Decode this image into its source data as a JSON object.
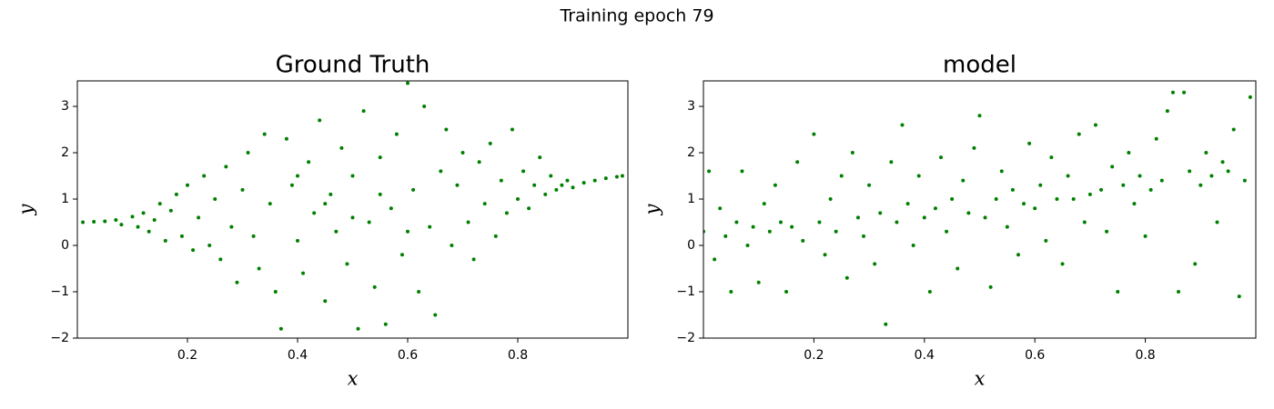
{
  "title": "Training epoch 79",
  "chart_data": [
    {
      "type": "scatter",
      "title": "Ground Truth",
      "xlabel": "x",
      "ylabel": "y",
      "color": "#008000",
      "xlim": [
        0,
        1
      ],
      "ylim": [
        -2,
        3.55
      ],
      "xticks": [
        0.2,
        0.4,
        0.6,
        0.8
      ],
      "yticks": [
        {
          "value": -2,
          "label": "−2"
        },
        {
          "value": -1,
          "label": "−1"
        },
        0,
        1,
        2,
        3
      ],
      "x": [
        0.01,
        0.03,
        0.05,
        0.07,
        0.08,
        0.1,
        0.11,
        0.12,
        0.13,
        0.14,
        0.15,
        0.16,
        0.17,
        0.18,
        0.19,
        0.2,
        0.21,
        0.22,
        0.23,
        0.24,
        0.25,
        0.26,
        0.27,
        0.28,
        0.29,
        0.3,
        0.31,
        0.32,
        0.33,
        0.34,
        0.35,
        0.36,
        0.37,
        0.38,
        0.39,
        0.4,
        0.41,
        0.42,
        0.43,
        0.44,
        0.45,
        0.46,
        0.47,
        0.48,
        0.49,
        0.5,
        0.51,
        0.52,
        0.53,
        0.54,
        0.55,
        0.56,
        0.57,
        0.58,
        0.59,
        0.6,
        0.61,
        0.62,
        0.63,
        0.64,
        0.65,
        0.66,
        0.67,
        0.68,
        0.69,
        0.7,
        0.71,
        0.72,
        0.73,
        0.74,
        0.75,
        0.76,
        0.77,
        0.78,
        0.79,
        0.8,
        0.81,
        0.82,
        0.83,
        0.84,
        0.85,
        0.86,
        0.87,
        0.88,
        0.89,
        0.9,
        0.92,
        0.94,
        0.96,
        0.98,
        0.99,
        0.45,
        0.5,
        0.55,
        0.4,
        0.6
      ],
      "y": [
        0.5,
        0.51,
        0.52,
        0.55,
        0.45,
        0.62,
        0.4,
        0.7,
        0.3,
        0.55,
        0.9,
        0.1,
        0.75,
        1.1,
        0.2,
        1.3,
        -0.1,
        0.6,
        1.5,
        0.0,
        1.0,
        -0.3,
        1.7,
        0.4,
        -0.8,
        1.2,
        2.0,
        0.2,
        -0.5,
        2.4,
        0.9,
        -1.0,
        -1.8,
        2.3,
        1.3,
        0.1,
        -0.6,
        1.8,
        0.7,
        2.7,
        -1.2,
        1.1,
        0.3,
        2.1,
        -0.4,
        1.5,
        -1.8,
        2.9,
        0.5,
        -0.9,
        1.9,
        -1.7,
        0.8,
        2.4,
        -0.2,
        3.5,
        1.2,
        -1.0,
        3.0,
        0.4,
        -1.5,
        1.6,
        2.5,
        0.0,
        1.3,
        2.0,
        0.5,
        -0.3,
        1.8,
        0.9,
        2.2,
        0.2,
        1.4,
        0.7,
        2.5,
        1.0,
        1.6,
        0.8,
        1.3,
        1.9,
        1.1,
        1.5,
        1.2,
        1.3,
        1.4,
        1.25,
        1.35,
        1.4,
        1.45,
        1.48,
        1.5,
        0.9,
        0.6,
        1.1,
        1.5,
        0.3
      ]
    },
    {
      "type": "scatter",
      "title": "model",
      "xlabel": "x",
      "ylabel": "y",
      "color": "#008000",
      "xlim": [
        0,
        1
      ],
      "ylim": [
        -2,
        3.55
      ],
      "xticks": [
        0.2,
        0.4,
        0.6,
        0.8
      ],
      "yticks": [
        {
          "value": -2,
          "label": "−2"
        },
        {
          "value": -1,
          "label": "−1"
        },
        0,
        1,
        2,
        3
      ],
      "x": [
        0.0,
        0.01,
        0.02,
        0.03,
        0.04,
        0.05,
        0.06,
        0.07,
        0.08,
        0.09,
        0.1,
        0.11,
        0.12,
        0.13,
        0.14,
        0.15,
        0.16,
        0.17,
        0.18,
        0.2,
        0.21,
        0.22,
        0.23,
        0.24,
        0.25,
        0.26,
        0.27,
        0.28,
        0.29,
        0.3,
        0.31,
        0.32,
        0.33,
        0.34,
        0.35,
        0.36,
        0.37,
        0.38,
        0.39,
        0.4,
        0.41,
        0.42,
        0.43,
        0.44,
        0.45,
        0.46,
        0.47,
        0.48,
        0.49,
        0.5,
        0.51,
        0.52,
        0.53,
        0.54,
        0.55,
        0.56,
        0.57,
        0.58,
        0.59,
        0.6,
        0.61,
        0.62,
        0.63,
        0.64,
        0.65,
        0.66,
        0.67,
        0.68,
        0.69,
        0.7,
        0.71,
        0.72,
        0.73,
        0.74,
        0.75,
        0.76,
        0.77,
        0.78,
        0.79,
        0.8,
        0.81,
        0.82,
        0.83,
        0.84,
        0.85,
        0.86,
        0.87,
        0.88,
        0.89,
        0.9,
        0.91,
        0.92,
        0.93,
        0.94,
        0.95,
        0.96,
        0.97,
        0.98,
        0.99
      ],
      "y": [
        0.3,
        1.6,
        -0.3,
        0.8,
        0.2,
        -1.0,
        0.5,
        1.6,
        0.0,
        0.4,
        -0.8,
        0.9,
        0.3,
        1.3,
        0.5,
        -1.0,
        0.4,
        1.8,
        0.1,
        2.4,
        0.5,
        -0.2,
        1.0,
        0.3,
        1.5,
        -0.7,
        2.0,
        0.6,
        0.2,
        1.3,
        -0.4,
        0.7,
        -1.7,
        1.8,
        0.5,
        2.6,
        0.9,
        0.0,
        1.5,
        0.6,
        -1.0,
        0.8,
        1.9,
        0.3,
        1.0,
        -0.5,
        1.4,
        0.7,
        2.1,
        2.8,
        0.6,
        -0.9,
        1.0,
        1.6,
        0.4,
        1.2,
        -0.2,
        0.9,
        2.2,
        0.8,
        1.3,
        0.1,
        1.9,
        1.0,
        -0.4,
        1.5,
        1.0,
        2.4,
        0.5,
        1.1,
        2.6,
        1.2,
        0.3,
        1.7,
        -1.0,
        1.3,
        2.0,
        0.9,
        1.5,
        0.2,
        1.2,
        2.3,
        1.4,
        2.9,
        3.3,
        -1.0,
        3.3,
        1.6,
        -0.4,
        1.3,
        2.0,
        1.5,
        0.5,
        1.8,
        1.6,
        2.5,
        -1.1,
        1.4,
        3.2
      ]
    }
  ]
}
